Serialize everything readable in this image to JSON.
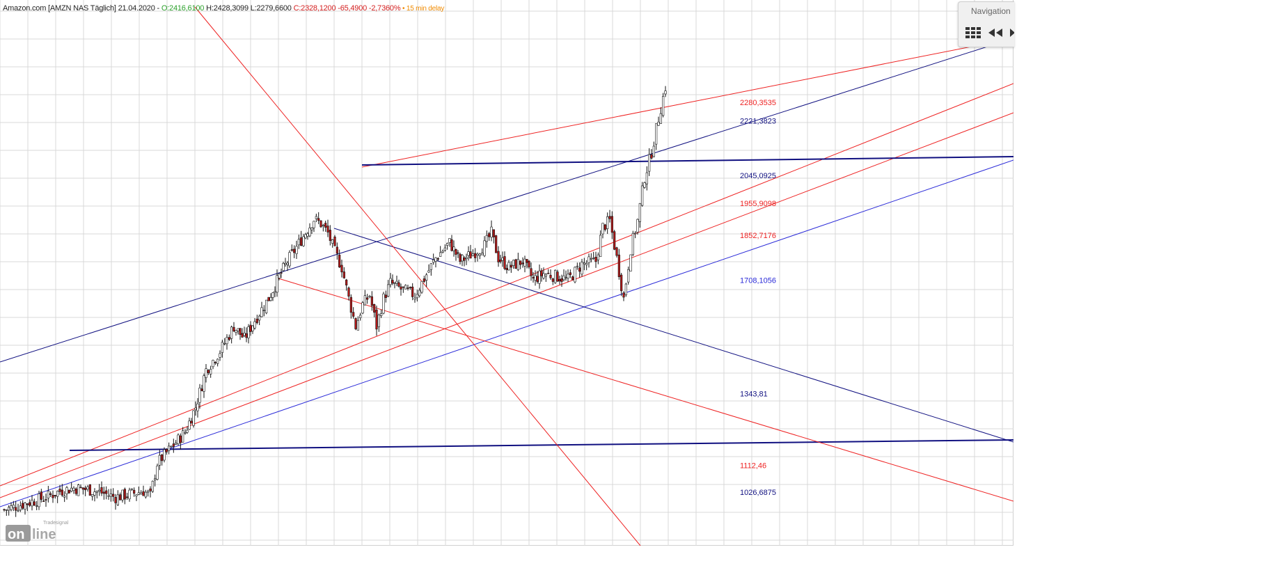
{
  "header": {
    "instrument": "Amazon.com [AMZN NAS Täglich] 21.04.2020 - ",
    "open": "O:2416,6100",
    "high_low": " H:2428,3099 L:2279,6600 ",
    "close_change": "C:2328,1200 -65,4900 -2,7360%",
    "delay": " • 15 min delay"
  },
  "navigation": {
    "title": "Navigation",
    "icons": [
      "grid-icon",
      "rewind-icon",
      "play-icon"
    ]
  },
  "watermark": {
    "small": "Tradesignal",
    "big": "online"
  },
  "colors": {
    "red": "#ee2222",
    "blue": "#2a2ad8",
    "navy": "#101080",
    "candle_up": "#ffffff",
    "candle_down": "#b01818",
    "grid": "#d8d8d8"
  },
  "chart_data": {
    "type": "candlestick",
    "title": "",
    "xlabel": "",
    "ylabel": "",
    "ylim": [
      920,
      2500
    ],
    "grid": true,
    "price_levels": [
      {
        "label": "2280,3535",
        "value": 2280.3535,
        "color": "red"
      },
      {
        "label": "2221,3823",
        "value": 2221.3823,
        "color": "navy"
      },
      {
        "label": "2045,0925",
        "value": 2045.0925,
        "color": "navy"
      },
      {
        "label": "1955,9098",
        "value": 1955.9098,
        "color": "red"
      },
      {
        "label": "1852,7176",
        "value": 1852.7176,
        "color": "red"
      },
      {
        "label": "1708,1056",
        "value": 1708.1056,
        "color": "blue"
      },
      {
        "label": "1343,81",
        "value": 1343.81,
        "color": "navy"
      },
      {
        "label": "1112,46",
        "value": 1112.46,
        "color": "red"
      },
      {
        "label": "1026,6875",
        "value": 1026.6875,
        "color": "navy"
      }
    ],
    "close_path": [
      [
        0,
        970
      ],
      [
        30,
        990
      ],
      [
        60,
        1010
      ],
      [
        80,
        1030
      ],
      [
        100,
        1040
      ],
      [
        120,
        1035
      ],
      [
        140,
        1025
      ],
      [
        160,
        1010
      ],
      [
        180,
        1020
      ],
      [
        200,
        1030
      ],
      [
        210,
        1015
      ],
      [
        220,
        1120
      ],
      [
        240,
        1170
      ],
      [
        260,
        1220
      ],
      [
        275,
        1300
      ],
      [
        290,
        1420
      ],
      [
        310,
        1480
      ],
      [
        330,
        1560
      ],
      [
        345,
        1520
      ],
      [
        360,
        1580
      ],
      [
        380,
        1650
      ],
      [
        395,
        1720
      ],
      [
        410,
        1780
      ],
      [
        430,
        1850
      ],
      [
        445,
        1905
      ],
      [
        455,
        1890
      ],
      [
        465,
        1860
      ],
      [
        475,
        1800
      ],
      [
        485,
        1750
      ],
      [
        495,
        1650
      ],
      [
        505,
        1560
      ],
      [
        515,
        1630
      ],
      [
        525,
        1660
      ],
      [
        535,
        1560
      ],
      [
        545,
        1650
      ],
      [
        555,
        1700
      ],
      [
        570,
        1680
      ],
      [
        590,
        1660
      ],
      [
        600,
        1700
      ],
      [
        620,
        1780
      ],
      [
        640,
        1830
      ],
      [
        655,
        1770
      ],
      [
        670,
        1790
      ],
      [
        690,
        1820
      ],
      [
        700,
        1860
      ],
      [
        710,
        1780
      ],
      [
        725,
        1750
      ],
      [
        745,
        1770
      ],
      [
        760,
        1710
      ],
      [
        775,
        1730
      ],
      [
        795,
        1720
      ],
      [
        810,
        1710
      ],
      [
        830,
        1760
      ],
      [
        850,
        1770
      ],
      [
        860,
        1880
      ],
      [
        870,
        1900
      ],
      [
        880,
        1780
      ],
      [
        890,
        1650
      ],
      [
        900,
        1810
      ],
      [
        910,
        1900
      ],
      [
        920,
        2040
      ],
      [
        930,
        2120
      ],
      [
        940,
        2230
      ],
      [
        950,
        2330
      ]
    ]
  }
}
